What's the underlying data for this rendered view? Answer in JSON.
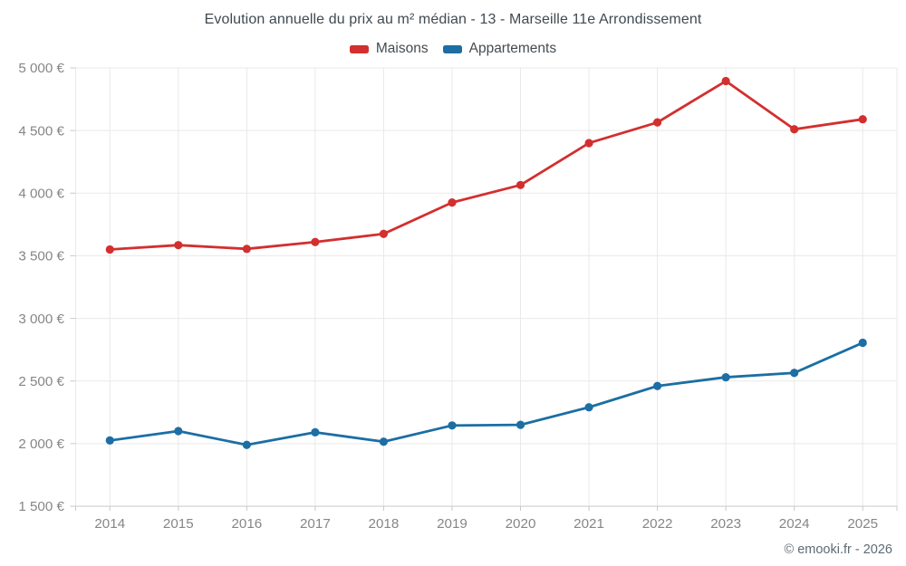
{
  "chart_data": {
    "type": "line",
    "title": "Evolution annuelle du prix au m² médian - 13 - Marseille 11e Arrondissement",
    "categories": [
      "2014",
      "2015",
      "2016",
      "2017",
      "2018",
      "2019",
      "2020",
      "2021",
      "2022",
      "2023",
      "2024",
      "2025"
    ],
    "series": [
      {
        "name": "Maisons",
        "color": "#d32f2f",
        "values": [
          3550,
          3585,
          3555,
          3610,
          3675,
          3925,
          4065,
          4400,
          4565,
          4895,
          4510,
          4590
        ]
      },
      {
        "name": "Appartements",
        "color": "#1c6ea4",
        "values": [
          2025,
          2100,
          1990,
          2090,
          2015,
          2145,
          2150,
          2290,
          2460,
          2530,
          2565,
          2805
        ]
      }
    ],
    "xlabel": "",
    "ylabel": "",
    "ylim": [
      1500,
      5000
    ],
    "ytick_step": 500,
    "ytick_labels": [
      "5 000 €",
      "4 500 €",
      "4 000 €",
      "3 500 €",
      "3 000 €",
      "2 500 €",
      "2 000 €",
      "1 500 €"
    ],
    "grid": true,
    "legend_position": "top"
  },
  "footer": {
    "copyright": "© emooki.fr - 2026"
  },
  "style": {
    "gridline_color": "#e9e9e9",
    "axis_color": "#c9c9c9",
    "tick_label_color": "#868686"
  }
}
